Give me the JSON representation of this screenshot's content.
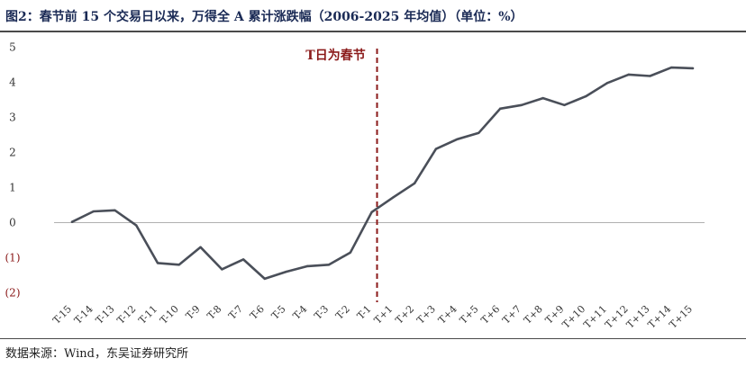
{
  "header": {
    "title": "图2：春节前 15 个交易日以来，万得全 A 累计涨跌幅（2006-2025 年均值）（单位：%）"
  },
  "footer": {
    "source": "数据来源：Wind，东吴证券研究所"
  },
  "colors": {
    "line": "#4a4f59",
    "marker": "#8b1a1a",
    "axis": "#b0b0b0",
    "negative_tick": "#8b1a1a",
    "positive_tick": "#333333",
    "title": "#1a2a55"
  },
  "chart_data": {
    "type": "line",
    "title": "春节前 15 个交易日以来，万得全 A 累计涨跌幅（2006-2025 年均值）",
    "xlabel": "",
    "ylabel": "",
    "ylim": [
      -2,
      5
    ],
    "yticks": [
      5,
      4,
      3,
      2,
      1,
      0,
      -1,
      -2
    ],
    "ytick_labels": [
      "5",
      "4",
      "3",
      "2",
      "1",
      "0",
      "(1)",
      "(2)"
    ],
    "grid": false,
    "categories": [
      "T-15",
      "T-14",
      "T-13",
      "T-12",
      "T-11",
      "T-10",
      "T-9",
      "T-8",
      "T-7",
      "T-6",
      "T-5",
      "T-4",
      "T-3",
      "T-2",
      "T-1",
      "T+1",
      "T+2",
      "T+3",
      "T+4",
      "T+5",
      "T+6",
      "T+7",
      "T+8",
      "T+9",
      "T+10",
      "T+11",
      "T+12",
      "T+13",
      "T+14",
      "T+15"
    ],
    "values": [
      0.02,
      0.32,
      0.35,
      -0.08,
      -1.15,
      -1.2,
      -0.7,
      -1.33,
      -1.05,
      -1.6,
      -1.4,
      -1.24,
      -1.2,
      -0.85,
      0.3,
      0.72,
      1.12,
      2.1,
      2.38,
      2.56,
      3.25,
      3.35,
      3.55,
      3.35,
      3.6,
      3.98,
      4.22,
      4.18,
      4.42,
      4.4
    ],
    "annotation": {
      "text": "T日为春节",
      "x_between": [
        "T-1",
        "T+1"
      ],
      "style": "dashed-vertical"
    }
  }
}
